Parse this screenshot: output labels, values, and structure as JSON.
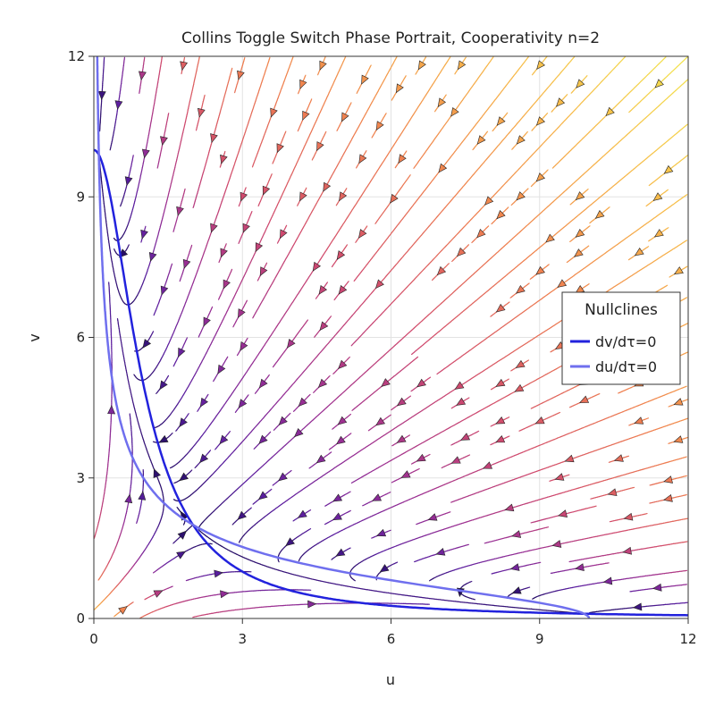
{
  "chart_data": {
    "type": "line",
    "title": "Collins Toggle Switch Phase Portrait, Cooperativity n=2",
    "xlabel": "u",
    "ylabel": "v",
    "xlim": [
      0,
      12
    ],
    "ylim": [
      0,
      12
    ],
    "xticks": [
      "0",
      "3",
      "6",
      "9",
      "12"
    ],
    "yticks": [
      "0",
      "3",
      "6",
      "9",
      "12"
    ],
    "grid": true,
    "legend": {
      "title": "Nullclines",
      "placement": "right",
      "entries": [
        {
          "label": "dv/dτ=0",
          "color": "#2222dd"
        },
        {
          "label": "du/dτ=0",
          "color": "#6f6fee"
        }
      ]
    },
    "model": {
      "beta": 10,
      "n": 2
    },
    "series": [
      {
        "name": "dv/dτ=0",
        "equation": "v = 10 / (1 + u^2)",
        "color": "#2222dd"
      },
      {
        "name": "du/dτ=0",
        "equation": "u = 10 / (1 + v^2)",
        "color": "#6f6fee"
      }
    ],
    "streamline_colormap": [
      "#1b0b5a",
      "#5a1ea0",
      "#9a2f93",
      "#d04a6e",
      "#ef7f4f",
      "#f7b84a",
      "#f2e84f"
    ]
  }
}
